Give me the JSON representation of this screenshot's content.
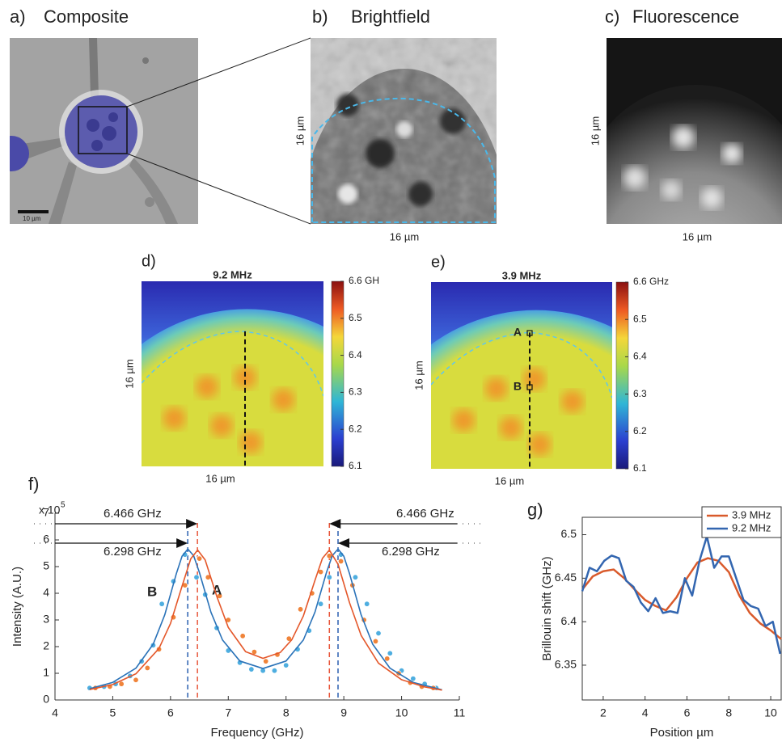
{
  "panels": {
    "a": {
      "label": "a)",
      "title": "Composite",
      "scale_bar": "10 µm"
    },
    "b": {
      "label": "b)",
      "title": "Brightfield",
      "x_label": "16 µm",
      "y_label": "16 µm"
    },
    "c": {
      "label": "c)",
      "title": "Fluorescence",
      "x_label": "16 µm",
      "y_label": "16 µm"
    }
  },
  "heatmaps": [
    {
      "label": "d)",
      "title": "9.2 MHz",
      "x_label": "16 µm",
      "y_label": "16 µm",
      "clim": [
        6.1,
        6.6
      ],
      "cticks": [
        {
          "value": 6.6,
          "label": "6.6 GH"
        },
        6.5,
        6.4,
        6.3,
        6.2,
        6.1
      ]
    },
    {
      "label": "e)",
      "title": "3.9 MHz",
      "x_label": "16 µm",
      "y_label": "16 µm",
      "clim": [
        6.1,
        6.6
      ],
      "cticks": [
        {
          "value": 6.6,
          "label": "6.6 GHz"
        },
        6.5,
        6.4,
        6.3,
        6.2,
        6.1
      ],
      "points": [
        "A",
        "B"
      ]
    }
  ],
  "chart_data": [
    {
      "type": "line",
      "label": "f)",
      "x_label": "Frequency (GHz)",
      "y_label": "Intensity (A.U.)",
      "y_multiplier": {
        "base": "x 10",
        "exponent": "5"
      },
      "xlim": [
        4,
        11
      ],
      "ylim": [
        0,
        7
      ],
      "xticks": [
        4,
        5,
        6,
        7,
        8,
        9,
        10,
        11
      ],
      "yticks": [
        0,
        1,
        2,
        3,
        4,
        5,
        6,
        7
      ],
      "series": [
        {
          "name": "B",
          "color": "#4eaee0",
          "mode": "markers",
          "x": [
            4.6,
            4.85,
            5.05,
            5.3,
            5.5,
            5.7,
            5.85,
            6.05,
            6.25,
            6.45,
            6.6,
            6.8,
            7.0,
            7.2,
            7.4,
            7.6,
            7.8,
            8.0,
            8.2,
            8.4,
            8.6,
            8.75,
            8.95,
            9.2,
            9.4,
            9.6,
            9.8,
            10.0,
            10.2,
            10.4,
            10.6
          ],
          "values": [
            0.45,
            0.5,
            0.6,
            0.9,
            1.45,
            2.05,
            3.6,
            4.45,
            5.45,
            4.6,
            3.95,
            2.7,
            1.85,
            1.4,
            1.15,
            1.1,
            1.1,
            1.3,
            1.9,
            2.6,
            3.6,
            4.6,
            5.45,
            4.6,
            3.6,
            2.5,
            1.75,
            1.1,
            0.8,
            0.6,
            0.45
          ]
        },
        {
          "name": "A",
          "color": "#f0843a",
          "mode": "markers",
          "x": [
            4.7,
            4.95,
            5.15,
            5.4,
            5.6,
            5.8,
            6.05,
            6.25,
            6.5,
            6.65,
            6.85,
            7.0,
            7.25,
            7.45,
            7.65,
            7.85,
            8.05,
            8.25,
            8.45,
            8.6,
            8.75,
            8.95,
            9.15,
            9.35,
            9.55,
            9.75,
            9.95,
            10.15,
            10.35,
            10.55
          ],
          "values": [
            0.45,
            0.5,
            0.6,
            0.75,
            1.2,
            1.9,
            3.1,
            4.3,
            5.3,
            4.6,
            3.9,
            3.0,
            2.4,
            1.8,
            1.45,
            1.7,
            2.3,
            3.4,
            4.0,
            4.8,
            5.4,
            5.2,
            4.3,
            3.0,
            2.2,
            1.55,
            1.0,
            0.65,
            0.5,
            0.45
          ]
        },
        {
          "color": "#2a72b8",
          "mode": "line",
          "x": [
            4.6,
            5.0,
            5.4,
            5.7,
            5.9,
            6.1,
            6.2,
            6.3,
            6.4,
            6.5,
            6.7,
            6.9,
            7.2,
            7.6,
            8.0,
            8.3,
            8.5,
            8.7,
            8.8,
            8.9,
            9.0,
            9.1,
            9.3,
            9.5,
            9.8,
            10.2,
            10.7
          ],
          "values": [
            0.42,
            0.66,
            1.19,
            2.09,
            3.19,
            4.73,
            5.39,
            5.66,
            5.41,
            4.78,
            3.29,
            2.25,
            1.46,
            1.18,
            1.46,
            2.25,
            3.29,
            4.78,
            5.41,
            5.66,
            5.39,
            4.73,
            3.19,
            2.09,
            1.19,
            0.66,
            0.38
          ]
        },
        {
          "color": "#e4572a",
          "mode": "line",
          "x": [
            4.6,
            5.0,
            5.4,
            5.8,
            6.0,
            6.2,
            6.35,
            6.47,
            6.6,
            6.8,
            7.0,
            7.3,
            7.6,
            7.9,
            8.1,
            8.3,
            8.5,
            8.63,
            8.75,
            8.9,
            9.1,
            9.3,
            9.6,
            10.0,
            10.4,
            10.7
          ],
          "values": [
            0.39,
            0.58,
            0.98,
            1.93,
            2.87,
            4.27,
            5.29,
            5.62,
            5.25,
            3.89,
            2.72,
            1.81,
            1.56,
            1.78,
            2.26,
            3.15,
            4.48,
            5.31,
            5.62,
            5.09,
            3.64,
            2.42,
            1.38,
            0.76,
            0.49,
            0.37
          ]
        }
      ],
      "vlines": [
        {
          "x": 6.298,
          "color": "#2a5fb0"
        },
        {
          "x": 6.466,
          "color": "#e8553a"
        },
        {
          "x": 8.75,
          "color": "#e8553a"
        },
        {
          "x": 8.9,
          "color": "#2a5fb0"
        }
      ],
      "annotations": [
        {
          "text": "6.466 GHz"
        },
        {
          "text": "6.298 GHz"
        },
        {
          "text": "6.466 GHz"
        },
        {
          "text": "6.298 GHz"
        }
      ]
    },
    {
      "type": "line",
      "label": "g)",
      "x_label": "Position µm",
      "y_label": "Brillouin shift (GHz)",
      "xlim": [
        1,
        10.5
      ],
      "ylim": [
        6.31,
        6.52
      ],
      "xticks": [
        2,
        4,
        6,
        8,
        10
      ],
      "yticks": [
        6.35,
        6.4,
        6.45,
        6.5
      ],
      "box": true,
      "legend": "upper right",
      "series": [
        {
          "name": "3.9 MHz",
          "color": "#d95a2b",
          "mode": "line",
          "x": [
            1,
            1.5,
            2,
            2.5,
            3,
            3.5,
            4,
            4.5,
            5,
            5.5,
            6,
            6.5,
            7,
            7.5,
            8,
            8.5,
            9,
            9.5,
            10,
            10.5
          ],
          "values": [
            6.437,
            6.452,
            6.458,
            6.46,
            6.45,
            6.437,
            6.425,
            6.418,
            6.413,
            6.428,
            6.45,
            6.468,
            6.473,
            6.47,
            6.457,
            6.43,
            6.41,
            6.398,
            6.39,
            6.38
          ]
        },
        {
          "name": "9.2 MHz",
          "color": "#3366b0",
          "mode": "line",
          "x": [
            1.0,
            1.35,
            1.7,
            2.05,
            2.4,
            2.75,
            3.1,
            3.45,
            3.8,
            4.15,
            4.5,
            4.85,
            5.2,
            5.55,
            5.9,
            6.25,
            6.6,
            6.95,
            7.3,
            7.65,
            8.0,
            8.35,
            8.7,
            9.05,
            9.4,
            9.75,
            10.1,
            10.45
          ],
          "values": [
            6.435,
            6.462,
            6.458,
            6.47,
            6.476,
            6.473,
            6.447,
            6.44,
            6.422,
            6.412,
            6.427,
            6.41,
            6.412,
            6.41,
            6.45,
            6.43,
            6.47,
            6.498,
            6.462,
            6.475,
            6.475,
            6.45,
            6.425,
            6.418,
            6.415,
            6.395,
            6.4,
            6.363
          ]
        }
      ]
    }
  ]
}
